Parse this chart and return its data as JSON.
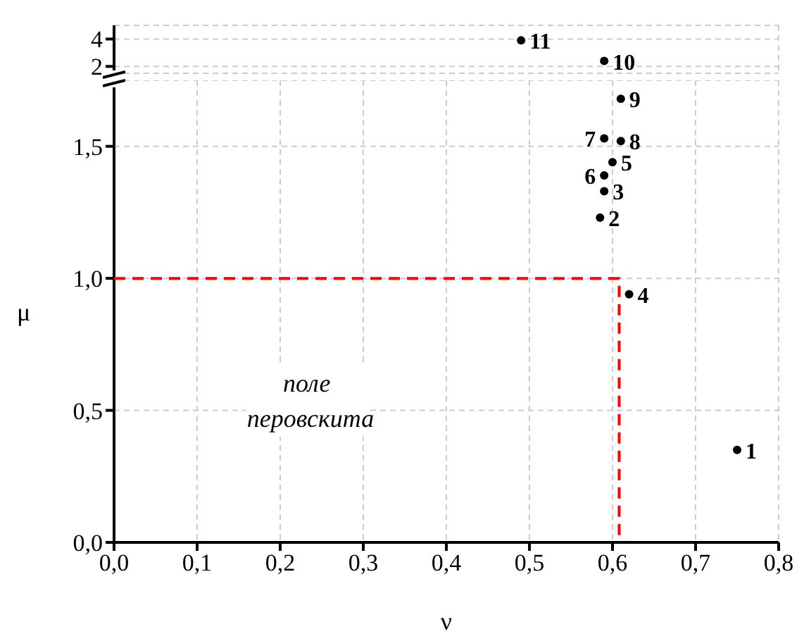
{
  "chart_data": [
    {
      "type": "scatter",
      "xlim": [
        0,
        0.8
      ],
      "ylim": [
        1.5,
        5
      ],
      "yticks": [
        2,
        4
      ],
      "tick_labels": "y",
      "grid": true,
      "legend": false,
      "annotations": [
        {
          "text": "11",
          "x": 0.49,
          "y": 3.9
        },
        {
          "text": "10",
          "x": 0.59,
          "y": 2.4
        }
      ],
      "series": [
        {
          "color": "#000000",
          "marker": "circle",
          "x": [
            0.49,
            0.59
          ],
          "values": [
            3.9,
            2.4
          ]
        }
      ]
    },
    {
      "type": "scatter",
      "xlabel": "ν",
      "ylabel": "μ",
      "xlim": [
        0,
        0.8
      ],
      "xticks": [
        {
          "value": 0,
          "label": "0,0"
        },
        {
          "value": 0.1,
          "label": "0,1"
        },
        {
          "value": 0.2,
          "label": "0,2"
        },
        {
          "value": 0.3,
          "label": "0,3"
        },
        {
          "value": 0.4,
          "label": "0,4"
        },
        {
          "value": 0.5,
          "label": "0,5"
        },
        {
          "value": 0.6,
          "label": "0,6"
        },
        {
          "value": 0.7,
          "label": "0,7"
        },
        {
          "value": 0.8,
          "label": "0,8"
        }
      ],
      "ylim": [
        0,
        1.75
      ],
      "yticks": [
        {
          "value": 0,
          "label": "0,0"
        },
        {
          "value": 0.5,
          "label": "0,5"
        },
        {
          "value": 1,
          "label": "1,0"
        },
        {
          "value": 1.5,
          "label": "1,5"
        }
      ],
      "grid": true,
      "legend": false,
      "annotations": [
        "поле перовскита",
        {
          "text": "1",
          "x": 0.75,
          "y": 0.35
        },
        {
          "text": "2",
          "x": 0.585,
          "y": 1.23
        },
        {
          "text": "3",
          "x": 0.59,
          "y": 1.33
        },
        {
          "text": "4",
          "x": 0.62,
          "y": 0.94
        },
        {
          "text": "5",
          "x": 0.6,
          "y": 1.44
        },
        {
          "text": "6",
          "x": 0.59,
          "y": 1.39
        },
        {
          "text": "7",
          "x": 0.59,
          "y": 1.53
        },
        {
          "text": "8",
          "x": 0.61,
          "y": 1.52
        },
        {
          "text": "9",
          "x": 0.61,
          "y": 1.68
        }
      ],
      "series": [
        {
          "color": "#000000",
          "marker": "circle",
          "x": [
            0.75,
            0.585,
            0.59,
            0.62,
            0.6,
            0.59,
            0.59,
            0.61,
            0.61
          ],
          "values": [
            0.35,
            1.23,
            1.33,
            0.94,
            1.44,
            1.39,
            1.53,
            1.52,
            1.68
          ]
        },
        {
          "type": "line",
          "color": "#ff0000",
          "line_style": "dashed",
          "x": [
            0,
            0.608,
            0.608
          ],
          "values": [
            1,
            1,
            0
          ]
        }
      ]
    }
  ]
}
